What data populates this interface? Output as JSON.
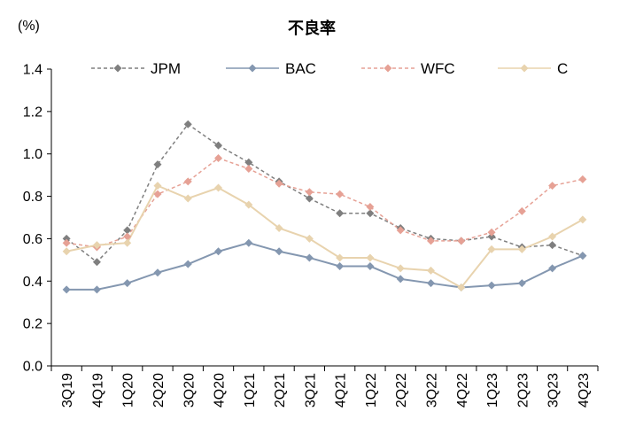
{
  "chart_data": {
    "type": "line",
    "title": "不良率",
    "ylabel": "(%)",
    "xlabel": "",
    "ylim": [
      0,
      1.4
    ],
    "yticks": [
      "0.0",
      "0.2",
      "0.4",
      "0.6",
      "0.8",
      "1.0",
      "1.2",
      "1.4"
    ],
    "categories": [
      "3Q19",
      "4Q19",
      "1Q20",
      "2Q20",
      "3Q20",
      "4Q20",
      "1Q21",
      "2Q21",
      "3Q21",
      "4Q21",
      "1Q22",
      "2Q22",
      "3Q22",
      "4Q22",
      "1Q23",
      "2Q23",
      "3Q23",
      "4Q23"
    ],
    "legend_position": "top",
    "grid": false,
    "series": [
      {
        "name": "JPM",
        "color": "#7f7f7f",
        "dashed": true,
        "values": [
          0.6,
          0.49,
          0.64,
          0.95,
          1.14,
          1.04,
          0.96,
          0.87,
          0.79,
          0.72,
          0.72,
          0.65,
          0.6,
          0.59,
          0.61,
          0.56,
          0.57,
          0.52
        ]
      },
      {
        "name": "BAC",
        "color": "#8497b0",
        "dashed": false,
        "values": [
          0.36,
          0.36,
          0.39,
          0.44,
          0.48,
          0.54,
          0.58,
          0.54,
          0.51,
          0.47,
          0.47,
          0.41,
          0.39,
          0.37,
          0.38,
          0.39,
          0.46,
          0.52
        ]
      },
      {
        "name": "WFC",
        "color": "#e6a195",
        "dashed": true,
        "values": [
          0.58,
          0.56,
          0.61,
          0.81,
          0.87,
          0.98,
          0.93,
          0.86,
          0.82,
          0.81,
          0.75,
          0.64,
          0.59,
          0.59,
          0.63,
          0.73,
          0.85,
          0.88
        ]
      },
      {
        "name": "C",
        "color": "#e8d3ae",
        "dashed": false,
        "values": [
          0.54,
          0.57,
          0.58,
          0.85,
          0.79,
          0.84,
          0.76,
          0.65,
          0.6,
          0.51,
          0.51,
          0.46,
          0.45,
          0.37,
          0.55,
          0.55,
          0.61,
          0.69
        ]
      }
    ]
  }
}
